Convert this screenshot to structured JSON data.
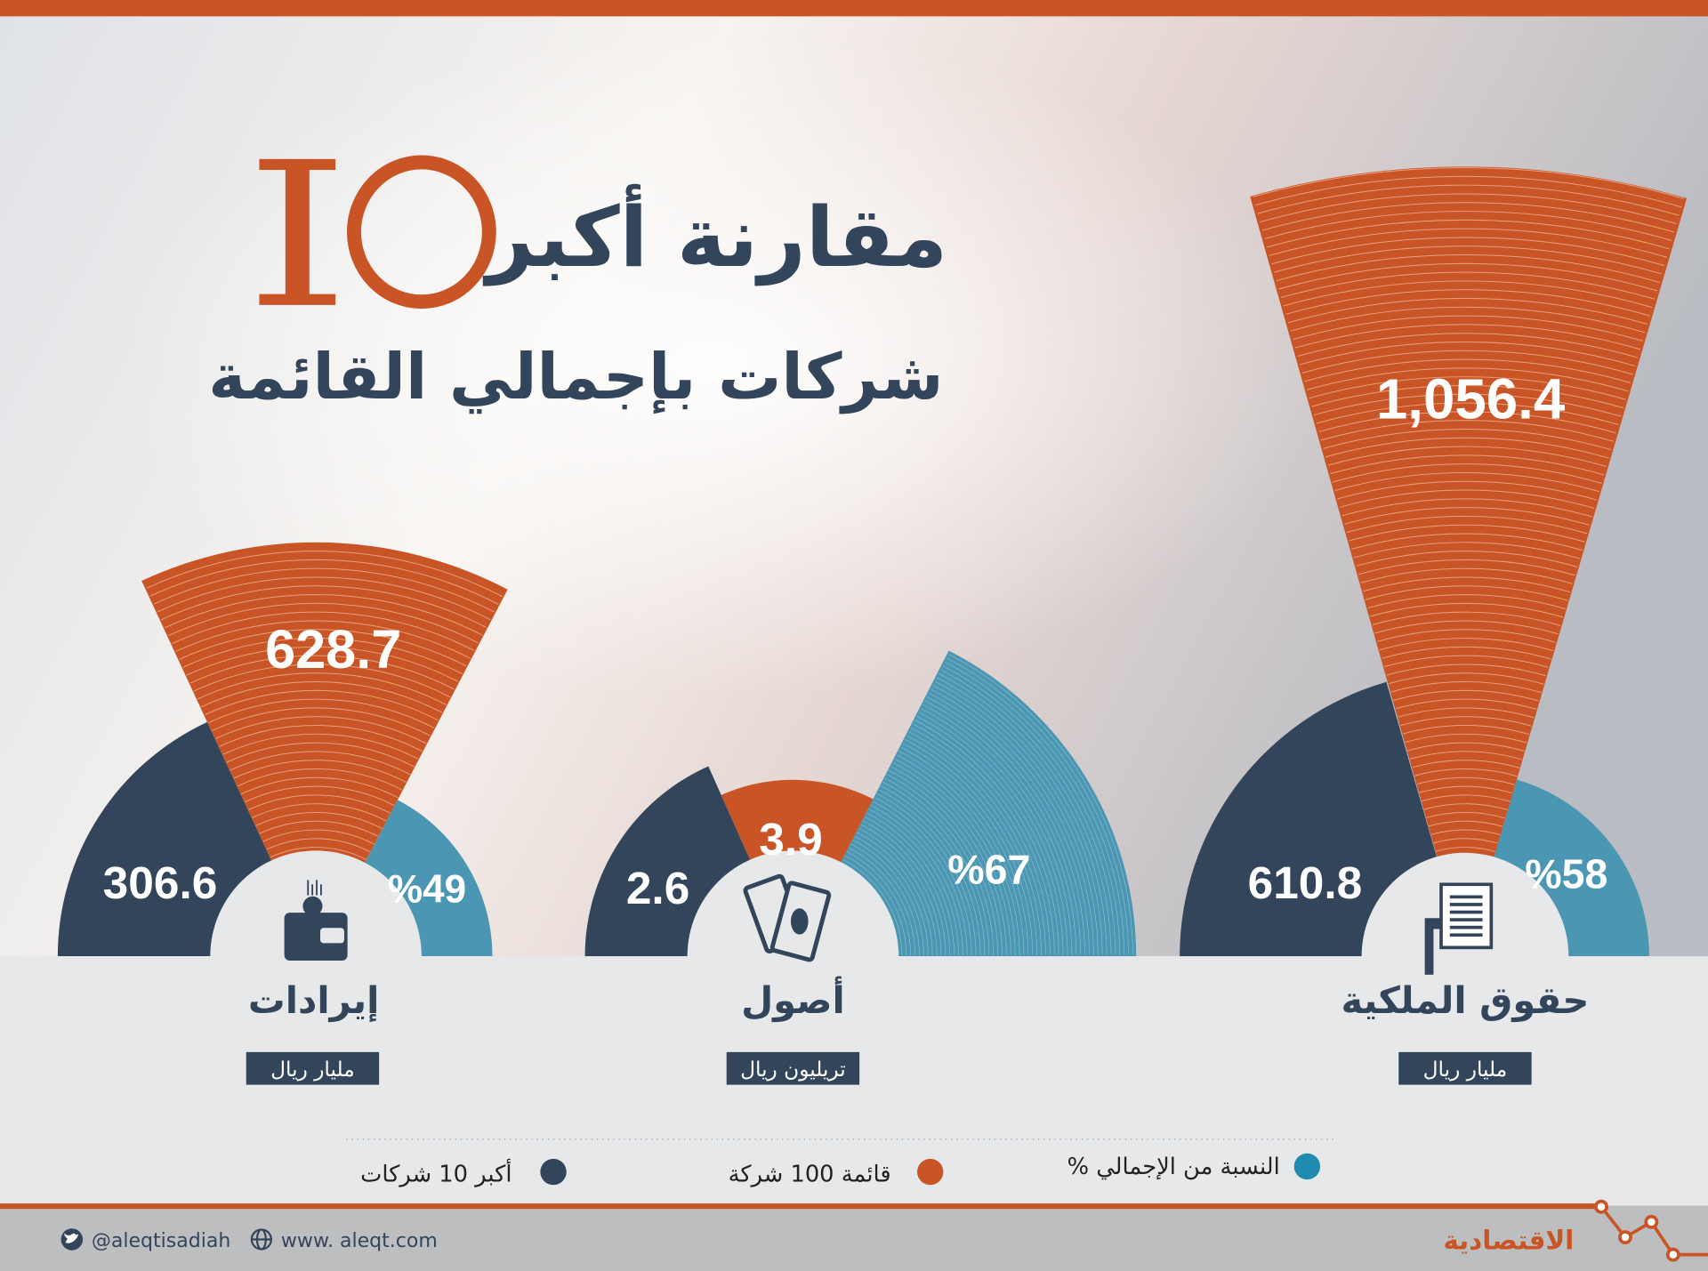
{
  "header": {
    "title_number": "10",
    "title_line1": "مقارنة أكبر",
    "title_line2": "شركات بإجمالي القائمة"
  },
  "colors": {
    "top10": "#33455a",
    "top100": "#c95526",
    "percent": "#4b97b3",
    "accent": "#c95526"
  },
  "chart_data": [
    {
      "type": "polar-area",
      "title": "حقوق الملكية",
      "unit": "مليار ريال",
      "icon": "document-hand-icon",
      "top10": "610.8",
      "top100": "1,056.4",
      "percent": "%58",
      "values": {
        "top10": 610.8,
        "top100": 1056.4,
        "percent": 58
      }
    },
    {
      "type": "polar-area",
      "title": "أصول",
      "unit": "تريليون ريال",
      "icon": "banknotes-icon",
      "top10": "2.6",
      "top100": "3.9",
      "percent": "%67",
      "values": {
        "top10": 2.6,
        "top100": 3.9,
        "percent": 67
      }
    },
    {
      "type": "polar-area",
      "title": "إيرادات",
      "unit": "مليار ريال",
      "icon": "wallet-icon",
      "top10": "306.6",
      "top100": "628.7",
      "percent": "%49",
      "values": {
        "top10": 306.6,
        "top100": 628.7,
        "percent": 49
      }
    }
  ],
  "legend": {
    "percent": "% النسبة من الإجمالي",
    "top100": "قائمة 100 شركة",
    "top10": "أكبر 10 شركات"
  },
  "footer": {
    "twitter": "@aleqtisadiah",
    "website": "www. aleqt.com",
    "logo": "الاقتصادية"
  }
}
